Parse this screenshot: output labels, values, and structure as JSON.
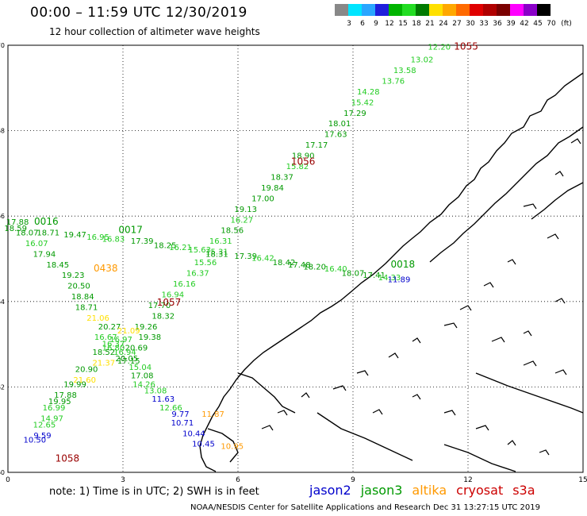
{
  "header": {
    "title": "00:00 – 11:59 UTC 12/30/2019",
    "subtitle": "12 hour collection of altimeter wave heights"
  },
  "legend": {
    "colors": [
      "#888888",
      "#00e5ff",
      "#2aa6ff",
      "#1f1fdc",
      "#00b400",
      "#22dd22",
      "#007a00",
      "#ffe000",
      "#ffa800",
      "#ff6a00",
      "#e00000",
      "#b00000",
      "#7a0000",
      "#ff00ff",
      "#8a00c8",
      "#000000"
    ],
    "labels": [
      "3",
      "6",
      "9",
      "12",
      "15",
      "18",
      "21",
      "24",
      "27",
      "30",
      "33",
      "36",
      "39",
      "42",
      "45",
      "70"
    ],
    "unit": "(ft)"
  },
  "note": "note:  1) Time is in UTC; 2) SWH is in feet",
  "satellites": [
    {
      "name": "jason2",
      "color": "#0000cc"
    },
    {
      "name": "jason3",
      "color": "#009900"
    },
    {
      "name": "altika",
      "color": "#ff9900"
    },
    {
      "name": "cryosat",
      "color": "#cc0000"
    },
    {
      "name": "s3a",
      "color": "#cc0000"
    }
  ],
  "footer": "NOAA/NESDIS Center for Satellite Applications and Research     Dec 31 13:27:15 UTC 2019",
  "chart_data": {
    "type": "scatter",
    "x_ticks": [
      0,
      3,
      6,
      9,
      12,
      15
    ],
    "y_ticks": [
      60,
      62,
      64,
      66,
      68,
      70
    ],
    "xlim": [
      0,
      15
    ],
    "ylim": [
      60,
      70
    ],
    "grid": true,
    "time_labels": [
      {
        "text": "1055",
        "x": 11.95,
        "y": 69.9,
        "color": "#990000"
      },
      {
        "text": "1056",
        "x": 7.7,
        "y": 67.2,
        "color": "#990000"
      },
      {
        "text": "0016",
        "x": 1.0,
        "y": 65.8,
        "color": "#009900"
      },
      {
        "text": "0017",
        "x": 3.2,
        "y": 65.6,
        "color": "#009900"
      },
      {
        "text": "0018",
        "x": 10.3,
        "y": 64.8,
        "color": "#009900"
      },
      {
        "text": "0438",
        "x": 2.55,
        "y": 64.7,
        "color": "#ff9900"
      },
      {
        "text": "1057",
        "x": 4.2,
        "y": 63.9,
        "color": "#990000"
      },
      {
        "text": "1058",
        "x": 1.55,
        "y": 60.25,
        "color": "#990000"
      }
    ],
    "series": [
      {
        "name": "cryosat",
        "color": "#009900",
        "points": [
          {
            "x": 11.25,
            "y": 69.9,
            "v": "12.20",
            "c": "#22cc22"
          },
          {
            "x": 10.8,
            "y": 69.6,
            "v": "13.02",
            "c": "#22cc22"
          },
          {
            "x": 10.35,
            "y": 69.35,
            "v": "13.58",
            "c": "#22cc22"
          },
          {
            "x": 10.05,
            "y": 69.1,
            "v": "13.76",
            "c": "#22cc22"
          },
          {
            "x": 9.4,
            "y": 68.85,
            "v": "14.28",
            "c": "#22cc22"
          },
          {
            "x": 9.25,
            "y": 68.6,
            "v": "15.42",
            "c": "#22cc22"
          },
          {
            "x": 9.05,
            "y": 68.35,
            "v": "17.29",
            "c": "#009900"
          },
          {
            "x": 8.65,
            "y": 68.1,
            "v": "18.01",
            "c": "#009900"
          },
          {
            "x": 8.55,
            "y": 67.85,
            "v": "17.63",
            "c": "#009900"
          },
          {
            "x": 8.05,
            "y": 67.6,
            "v": "17.17",
            "c": "#009900"
          },
          {
            "x": 7.7,
            "y": 67.35,
            "v": "18.90",
            "c": "#009900"
          },
          {
            "x": 7.55,
            "y": 67.1,
            "v": "15.82",
            "c": "#22cc22"
          },
          {
            "x": 7.15,
            "y": 66.85,
            "v": "18.37",
            "c": "#009900"
          },
          {
            "x": 6.9,
            "y": 66.6,
            "v": "19.84",
            "c": "#009900"
          },
          {
            "x": 6.65,
            "y": 66.35,
            "v": "17.00",
            "c": "#009900"
          },
          {
            "x": 6.2,
            "y": 66.1,
            "v": "19.13",
            "c": "#009900"
          },
          {
            "x": 6.1,
            "y": 65.85,
            "v": "16.27",
            "c": "#22cc22"
          },
          {
            "x": 5.85,
            "y": 65.6,
            "v": "18.56",
            "c": "#009900"
          },
          {
            "x": 5.55,
            "y": 65.35,
            "v": "16.31",
            "c": "#22cc22"
          },
          {
            "x": 5.45,
            "y": 65.1,
            "v": "15.31",
            "c": "#22cc22"
          },
          {
            "x": 5.15,
            "y": 64.85,
            "v": "15.56",
            "c": "#22cc22"
          },
          {
            "x": 4.95,
            "y": 64.6,
            "v": "16.37",
            "c": "#22cc22"
          },
          {
            "x": 4.6,
            "y": 64.35,
            "v": "16.16",
            "c": "#22cc22"
          },
          {
            "x": 4.3,
            "y": 64.1,
            "v": "16.94",
            "c": "#22cc22"
          },
          {
            "x": 3.95,
            "y": 63.85,
            "v": "17.70",
            "c": "#009900"
          },
          {
            "x": 4.05,
            "y": 63.6,
            "v": "18.32",
            "c": "#009900"
          },
          {
            "x": 3.6,
            "y": 63.35,
            "v": "19.26",
            "c": "#009900"
          },
          {
            "x": 3.7,
            "y": 63.1,
            "v": "19.38",
            "c": "#009900"
          },
          {
            "x": 3.35,
            "y": 62.85,
            "v": "20.69",
            "c": "#009900"
          },
          {
            "x": 3.1,
            "y": 62.6,
            "v": "20.05",
            "c": "#009900"
          }
        ]
      },
      {
        "name": "jason3",
        "color": "#009900",
        "points": [
          {
            "x": 0.25,
            "y": 65.8,
            "v": "17.88",
            "c": "#009900"
          },
          {
            "x": 0.2,
            "y": 65.65,
            "v": "18.59",
            "c": "#009900"
          },
          {
            "x": 0.5,
            "y": 65.55,
            "v": "18.07",
            "c": "#009900"
          },
          {
            "x": 1.05,
            "y": 65.55,
            "v": "18.71",
            "c": "#009900"
          },
          {
            "x": 1.75,
            "y": 65.5,
            "v": "19.47",
            "c": "#009900"
          },
          {
            "x": 2.35,
            "y": 65.45,
            "v": "16.95",
            "c": "#22cc22"
          },
          {
            "x": 2.75,
            "y": 65.4,
            "v": "16.83",
            "c": "#22cc22"
          },
          {
            "x": 3.5,
            "y": 65.35,
            "v": "17.39",
            "c": "#009900"
          },
          {
            "x": 4.1,
            "y": 65.25,
            "v": "18.25",
            "c": "#009900"
          },
          {
            "x": 4.5,
            "y": 65.2,
            "v": "16.21",
            "c": "#22cc22"
          },
          {
            "x": 5.0,
            "y": 65.15,
            "v": "15.63",
            "c": "#22cc22"
          },
          {
            "x": 5.45,
            "y": 65.05,
            "v": "18.31",
            "c": "#009900"
          },
          {
            "x": 6.2,
            "y": 65.0,
            "v": "17.39",
            "c": "#009900"
          },
          {
            "x": 6.65,
            "y": 64.95,
            "v": "16.42",
            "c": "#22cc22"
          },
          {
            "x": 7.2,
            "y": 64.85,
            "v": "18.42",
            "c": "#009900"
          },
          {
            "x": 7.6,
            "y": 64.8,
            "v": "17.48",
            "c": "#009900"
          },
          {
            "x": 8.0,
            "y": 64.75,
            "v": "18.20",
            "c": "#009900"
          },
          {
            "x": 8.55,
            "y": 64.7,
            "v": "16.40",
            "c": "#22cc22"
          },
          {
            "x": 9.0,
            "y": 64.6,
            "v": "18.07",
            "c": "#009900"
          },
          {
            "x": 9.55,
            "y": 64.55,
            "v": "17.41",
            "c": "#009900"
          },
          {
            "x": 9.95,
            "y": 64.5,
            "v": "14.33",
            "c": "#22cc22"
          },
          {
            "x": 10.2,
            "y": 64.45,
            "v": "11.89",
            "c": "#0000cc"
          }
        ]
      },
      {
        "name": "s3a",
        "color": "#009900",
        "points": [
          {
            "x": 0.75,
            "y": 65.3,
            "v": "16.07",
            "c": "#22cc22"
          },
          {
            "x": 0.95,
            "y": 65.05,
            "v": "17.94",
            "c": "#009900"
          },
          {
            "x": 1.3,
            "y": 64.8,
            "v": "18.45",
            "c": "#009900"
          },
          {
            "x": 1.7,
            "y": 64.55,
            "v": "19.23",
            "c": "#009900"
          },
          {
            "x": 1.85,
            "y": 64.3,
            "v": "20.50",
            "c": "#009900"
          },
          {
            "x": 1.95,
            "y": 64.05,
            "v": "18.84",
            "c": "#009900"
          },
          {
            "x": 2.05,
            "y": 63.8,
            "v": "18.71",
            "c": "#009900"
          },
          {
            "x": 2.35,
            "y": 63.55,
            "v": "21.06",
            "c": "#ffe000"
          },
          {
            "x": 2.65,
            "y": 63.35,
            "v": "20.27",
            "c": "#009900"
          },
          {
            "x": 3.15,
            "y": 63.25,
            "v": "21.09",
            "c": "#ffe000"
          },
          {
            "x": 2.55,
            "y": 63.1,
            "v": "16.67",
            "c": "#22cc22"
          },
          {
            "x": 2.95,
            "y": 63.05,
            "v": "16.97",
            "c": "#22cc22"
          },
          {
            "x": 2.75,
            "y": 62.95,
            "v": "16.37",
            "c": "#22cc22"
          },
          {
            "x": 2.75,
            "y": 62.85,
            "v": "16.80",
            "c": "#22cc22"
          },
          {
            "x": 3.05,
            "y": 62.75,
            "v": "16.94",
            "c": "#22cc22"
          },
          {
            "x": 2.5,
            "y": 62.75,
            "v": "18.52",
            "c": "#009900"
          },
          {
            "x": 3.15,
            "y": 62.55,
            "v": "17.15",
            "c": "#009900"
          },
          {
            "x": 2.5,
            "y": 62.5,
            "v": "21.37",
            "c": "#ffe000"
          },
          {
            "x": 3.45,
            "y": 62.4,
            "v": "15.04",
            "c": "#22cc22"
          },
          {
            "x": 2.05,
            "y": 62.35,
            "v": "20.90",
            "c": "#009900"
          },
          {
            "x": 3.5,
            "y": 62.2,
            "v": "17.08",
            "c": "#009900"
          },
          {
            "x": 2.0,
            "y": 62.1,
            "v": "21.60",
            "c": "#ffe000"
          },
          {
            "x": 3.55,
            "y": 62.0,
            "v": "14.26",
            "c": "#22cc22"
          },
          {
            "x": 1.75,
            "y": 62.0,
            "v": "19.99",
            "c": "#009900"
          },
          {
            "x": 3.85,
            "y": 61.85,
            "v": "13.08",
            "c": "#22cc22"
          },
          {
            "x": 1.5,
            "y": 61.75,
            "v": "17.88",
            "c": "#009900"
          },
          {
            "x": 4.05,
            "y": 61.65,
            "v": "11.63",
            "c": "#0000cc"
          },
          {
            "x": 1.35,
            "y": 61.6,
            "v": "19.95",
            "c": "#009900"
          },
          {
            "x": 1.2,
            "y": 61.45,
            "v": "16.99",
            "c": "#22cc22"
          },
          {
            "x": 4.25,
            "y": 61.45,
            "v": "12.66",
            "c": "#22cc22"
          },
          {
            "x": 1.15,
            "y": 61.2,
            "v": "14.97",
            "c": "#22cc22"
          },
          {
            "x": 4.5,
            "y": 61.3,
            "v": "9.77",
            "c": "#0000cc"
          },
          {
            "x": 5.35,
            "y": 61.3,
            "v": "11.87",
            "c": "#ff9900"
          },
          {
            "x": 4.55,
            "y": 61.1,
            "v": "10.71",
            "c": "#0000cc"
          },
          {
            "x": 0.95,
            "y": 61.05,
            "v": "12.65",
            "c": "#22cc22"
          },
          {
            "x": 4.85,
            "y": 60.85,
            "v": "10.44",
            "c": "#0000cc"
          },
          {
            "x": 0.9,
            "y": 60.8,
            "v": "9.59",
            "c": "#0000cc"
          },
          {
            "x": 0.7,
            "y": 60.7,
            "v": "10.50",
            "c": "#0000cc"
          },
          {
            "x": 5.1,
            "y": 60.6,
            "v": "10.45",
            "c": "#0000cc"
          },
          {
            "x": 5.85,
            "y": 60.55,
            "v": "10.95",
            "c": "#ff9900"
          }
        ]
      }
    ]
  }
}
